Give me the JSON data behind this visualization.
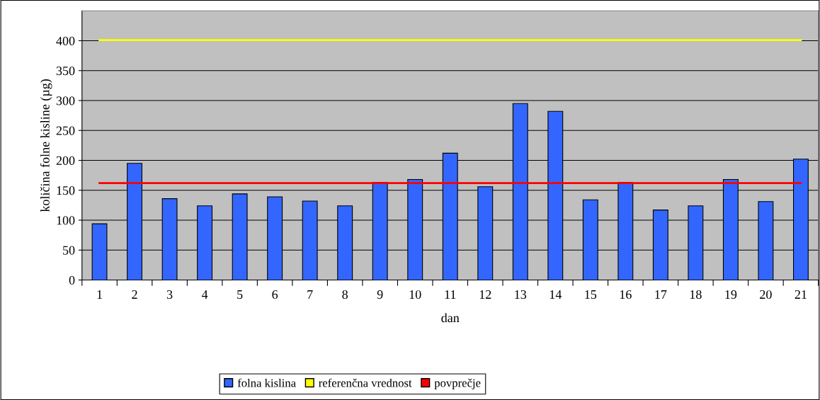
{
  "chart_data": {
    "type": "bar",
    "xlabel": "dan",
    "ylabel": "količina folne kisline (µg)",
    "categories": [
      "1",
      "2",
      "3",
      "4",
      "5",
      "6",
      "7",
      "8",
      "9",
      "10",
      "11",
      "12",
      "13",
      "14",
      "15",
      "16",
      "17",
      "18",
      "19",
      "20",
      "21"
    ],
    "series": [
      {
        "name": "folna kislina",
        "color": "#3366ff",
        "values": [
          94,
          195,
          136,
          124,
          144,
          139,
          132,
          124,
          163,
          168,
          212,
          156,
          295,
          282,
          134,
          163,
          117,
          124,
          168,
          131,
          202
        ]
      },
      {
        "name": "referenčna vrednost",
        "type": "line",
        "color": "#ffff00",
        "values": [
          401,
          401,
          401,
          401,
          401,
          401,
          401,
          401,
          401,
          401,
          401,
          401,
          401,
          401,
          401,
          401,
          401,
          401,
          401,
          401,
          401
        ]
      },
      {
        "name": "povprečje",
        "type": "line",
        "color": "#ff0000",
        "values": [
          162,
          162,
          162,
          162,
          162,
          162,
          162,
          162,
          162,
          162,
          162,
          162,
          162,
          162,
          162,
          162,
          162,
          162,
          162,
          162,
          162
        ]
      }
    ],
    "ylim": [
      0,
      450
    ],
    "yticks": [
      0,
      50,
      100,
      150,
      200,
      250,
      300,
      350,
      400
    ],
    "grid": "y",
    "legend": "bottom"
  }
}
